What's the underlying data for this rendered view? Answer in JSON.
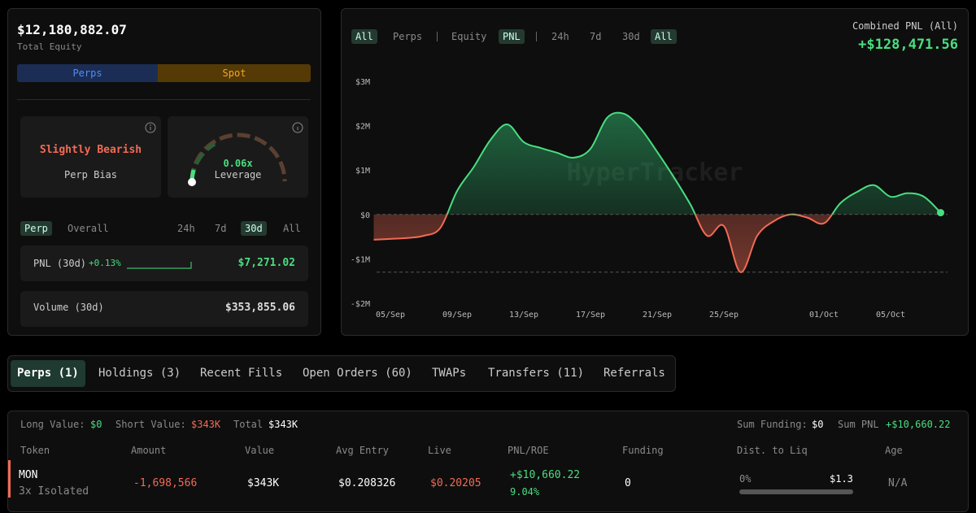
{
  "summary": {
    "equity": "$12,180,882.07",
    "equity_label": "Total Equity",
    "toggle": [
      "Perps",
      "Spot"
    ],
    "bias": "Slightly Bearish",
    "bias_label": "Perp Bias",
    "leverage": "0.06x",
    "leverage_label": "Leverage",
    "scope_tabs": [
      "Perp",
      "Overall"
    ],
    "period_tabs": [
      "24h",
      "7d",
      "30d",
      "All"
    ],
    "pnl_label": "PNL (30d)",
    "pnl_pct": "+0.13%",
    "pnl_value": "$7,271.02",
    "volume_label": "Volume (30d)",
    "volume_value": "$353,855.06"
  },
  "chart_panel": {
    "source_tabs": [
      "All",
      "Perps"
    ],
    "metric_tabs": [
      "Equity",
      "PNL"
    ],
    "range_tabs": [
      "24h",
      "7d",
      "30d",
      "All"
    ],
    "combined_label": "Combined PNL (All)",
    "combined_value": "+$128,471.56",
    "watermark": "HyperTracker",
    "chart_data": {
      "type": "line",
      "x": [
        "04/Sep",
        "05/Sep",
        "06/Sep",
        "07/Sep",
        "08/Sep",
        "09/Sep",
        "10/Sep",
        "11/Sep",
        "12/Sep",
        "13/Sep",
        "14/Sep",
        "15/Sep",
        "16/Sep",
        "17/Sep",
        "18/Sep",
        "19/Sep",
        "20/Sep",
        "21/Sep",
        "22/Sep",
        "23/Sep",
        "24/Sep",
        "25/Sep",
        "26/Sep",
        "27/Sep",
        "28/Sep",
        "29/Sep",
        "30/Sep",
        "01/Oct",
        "02/Oct",
        "03/Oct",
        "04/Oct",
        "05/Oct",
        "06/Oct",
        "07/Oct",
        "08/Oct"
      ],
      "values": [
        -570000,
        -550000,
        -530000,
        -480000,
        -300000,
        530000,
        1070000,
        1680000,
        2030000,
        1630000,
        1500000,
        1390000,
        1280000,
        1480000,
        2180000,
        2270000,
        1940000,
        1410000,
        840000,
        220000,
        -480000,
        -260000,
        -1300000,
        -480000,
        -150000,
        0,
        -70000,
        -200000,
        260000,
        510000,
        660000,
        400000,
        480000,
        400000,
        40000
      ],
      "xticks": [
        "05/Sep",
        "09/Sep",
        "13/Sep",
        "17/Sep",
        "21/Sep",
        "25/Sep",
        "01/Oct",
        "05/Oct"
      ],
      "ylim": [
        -2000000,
        3000000
      ],
      "yticks": [
        {
          "value": -2000000,
          "label": "-$2M"
        },
        {
          "value": -1000000,
          "label": "-$1M"
        },
        {
          "value": 0,
          "label": "$0"
        },
        {
          "value": 1000000,
          "label": "$1M"
        },
        {
          "value": 2000000,
          "label": "$2M"
        },
        {
          "value": 3000000,
          "label": "$3M"
        }
      ],
      "positive_color": "#4ade80",
      "negative_color": "#f26b55"
    }
  },
  "tabs": [
    "Perps (1)",
    "Holdings (3)",
    "Recent Fills",
    "Open Orders (60)",
    "TWAPs",
    "Transfers (11)",
    "Referrals"
  ],
  "positions": {
    "long_label": "Long Value:",
    "long_value": "$0",
    "short_label": "Short Value:",
    "short_value": "$343K",
    "total_label": "Total",
    "total_value": "$343K",
    "funding_label": "Sum Funding:",
    "funding_value": "$0",
    "sum_pnl_label": "Sum PNL",
    "sum_pnl_value": "+$10,660.22",
    "headers": [
      "Token",
      "Amount",
      "Value",
      "Avg Entry",
      "Live",
      "PNL/ROE",
      "Funding",
      "Dist. to Liq",
      "Age"
    ],
    "rows": [
      {
        "token": "MON",
        "margin": "3x Isolated",
        "amount": "-1,698,566",
        "value": "$343K",
        "avg_entry": "$0.208326",
        "live": "$0.20205",
        "pnl": "+$10,660.22",
        "roe": "9.04%",
        "funding": "0",
        "dist_pct": "0%",
        "liq_price": "$1.3",
        "age": "N/A"
      }
    ]
  }
}
